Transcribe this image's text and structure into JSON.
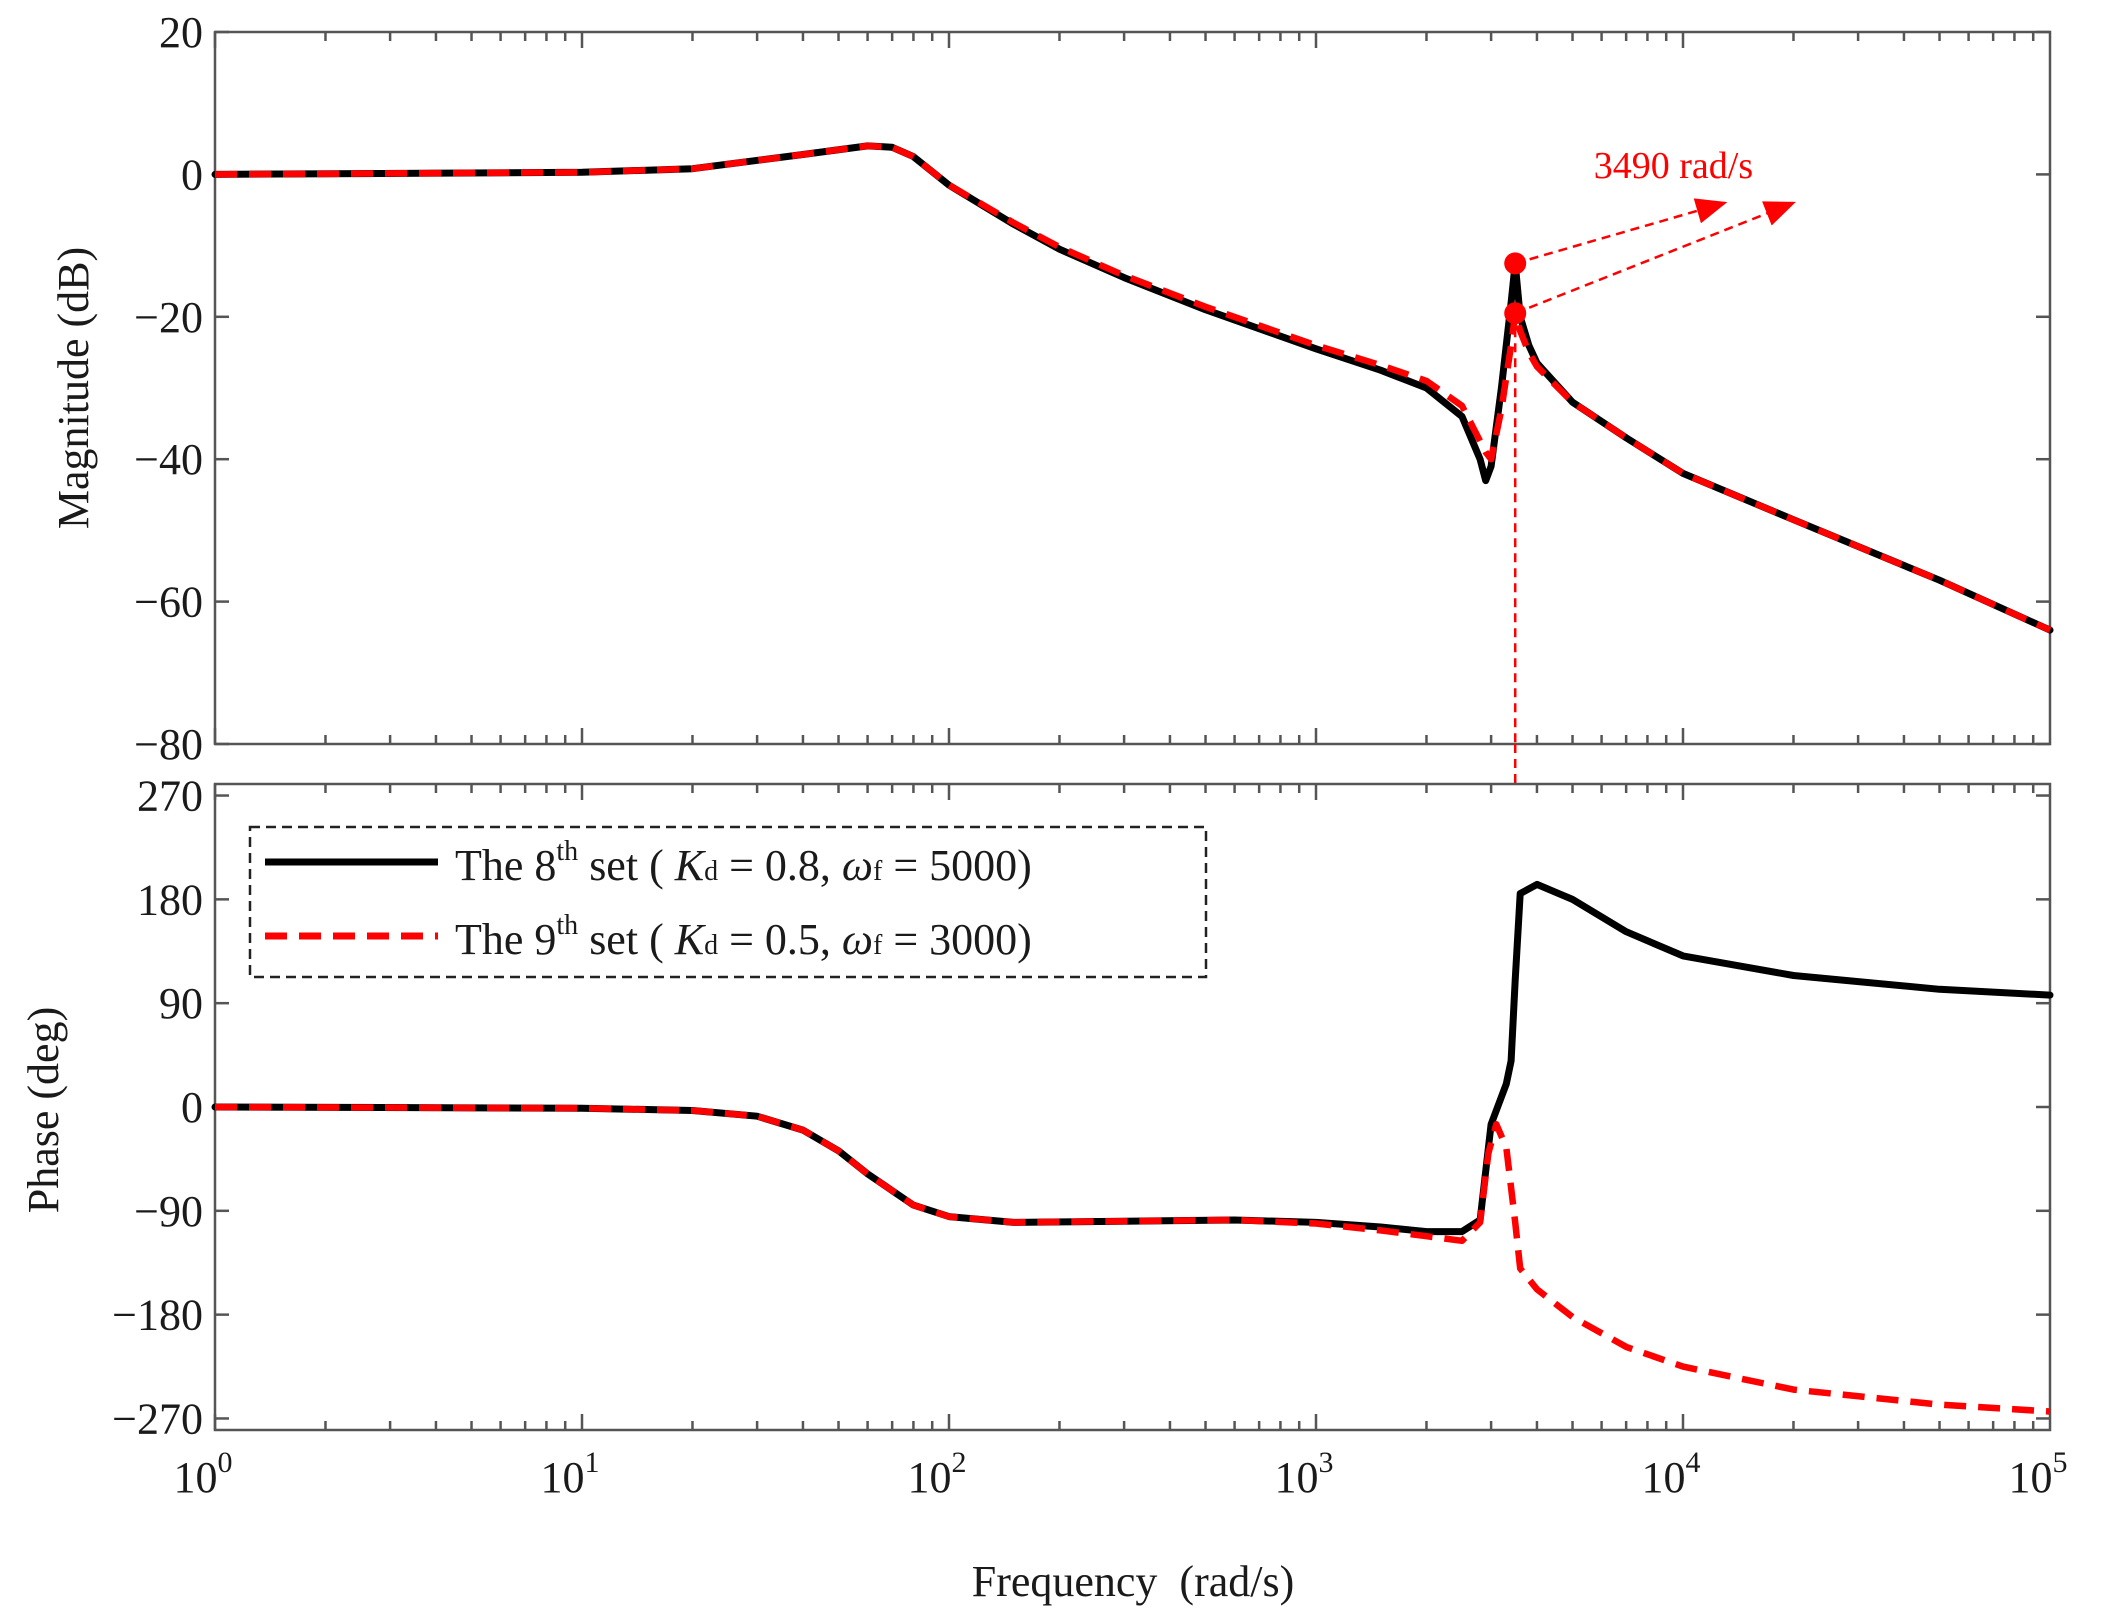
{
  "chart_data": [
    {
      "type": "line",
      "panel": "magnitude",
      "xscale": "log",
      "xlim": [
        1,
        100000
      ],
      "ylim": [
        -80,
        20
      ],
      "yticks": [
        20,
        0,
        -20,
        -40,
        -60,
        -80
      ],
      "ytick_labels": [
        "20",
        "0",
        "−20",
        "−40",
        "−60",
        "−80"
      ],
      "xlabel": "",
      "ylabel": "Magnitude (dB)",
      "grid": false,
      "series": [
        {
          "name": "The 8th set (Kd = 0.8, ωf = 5000)",
          "color": "#000000",
          "style": "solid",
          "points": [
            [
              1,
              0
            ],
            [
              10,
              0.3
            ],
            [
              20,
              0.8
            ],
            [
              40,
              2.8
            ],
            [
              60,
              4
            ],
            [
              70,
              3.8
            ],
            [
              80,
              2.5
            ],
            [
              100,
              -1.5
            ],
            [
              150,
              -7
            ],
            [
              200,
              -10.5
            ],
            [
              300,
              -14.5
            ],
            [
              500,
              -19
            ],
            [
              1000,
              -24.5
            ],
            [
              1500,
              -27.5
            ],
            [
              2000,
              -30
            ],
            [
              2500,
              -34
            ],
            [
              2800,
              -40
            ],
            [
              2900,
              -43
            ],
            [
              3000,
              -41
            ],
            [
              3200,
              -30
            ],
            [
              3400,
              -18
            ],
            [
              3490,
              -12.5
            ],
            [
              3600,
              -20
            ],
            [
              3800,
              -24
            ],
            [
              4000,
              -26.5
            ],
            [
              5000,
              -32
            ],
            [
              7000,
              -37
            ],
            [
              10000,
              -42
            ],
            [
              20000,
              -48.5
            ],
            [
              50000,
              -57
            ],
            [
              100000,
              -64
            ]
          ]
        },
        {
          "name": "The 9th set (Kd = 0.5, ωf = 3000)",
          "color": "#ff0000",
          "style": "dashed",
          "points": [
            [
              1,
              0
            ],
            [
              10,
              0.3
            ],
            [
              20,
              0.8
            ],
            [
              40,
              2.8
            ],
            [
              60,
              4
            ],
            [
              70,
              3.8
            ],
            [
              80,
              2.5
            ],
            [
              100,
              -1.5
            ],
            [
              150,
              -6.8
            ],
            [
              200,
              -10.2
            ],
            [
              300,
              -14.2
            ],
            [
              500,
              -18.6
            ],
            [
              1000,
              -24
            ],
            [
              1500,
              -26.8
            ],
            [
              2000,
              -29
            ],
            [
              2500,
              -32.5
            ],
            [
              2900,
              -39
            ],
            [
              3000,
              -40
            ],
            [
              3200,
              -33
            ],
            [
              3400,
              -24
            ],
            [
              3490,
              -19.5
            ],
            [
              3600,
              -22
            ],
            [
              3800,
              -25
            ],
            [
              4000,
              -27
            ],
            [
              5000,
              -32
            ],
            [
              7000,
              -37
            ],
            [
              10000,
              -42
            ],
            [
              20000,
              -48.5
            ],
            [
              50000,
              -57
            ],
            [
              100000,
              -64
            ]
          ]
        }
      ],
      "markers": [
        {
          "x": 3490,
          "y": -12.5,
          "color": "#ff0000"
        },
        {
          "x": 3490,
          "y": -19.5,
          "color": "#ff0000"
        }
      ],
      "annotation": {
        "text": "3490 rad/s",
        "color": "#ff0000",
        "x": 3490,
        "arrow_targets": [
          [
            13000,
            -4
          ],
          [
            20000,
            -4
          ]
        ]
      }
    },
    {
      "type": "line",
      "panel": "phase",
      "xscale": "log",
      "xlim": [
        1,
        100000
      ],
      "ylim": [
        -280,
        280
      ],
      "yticks": [
        270,
        180,
        90,
        0,
        -90,
        -180,
        -270
      ],
      "ytick_labels": [
        "270",
        "180",
        "90",
        "0",
        "−90",
        "−180",
        "−270"
      ],
      "xticks": [
        1,
        10,
        100,
        1000,
        10000,
        100000
      ],
      "xtick_labels": [
        {
          "base": "10",
          "exp": "0"
        },
        {
          "base": "10",
          "exp": "1"
        },
        {
          "base": "10",
          "exp": "2"
        },
        {
          "base": "10",
          "exp": "3"
        },
        {
          "base": "10",
          "exp": "4"
        },
        {
          "base": "10",
          "exp": "5"
        }
      ],
      "xlabel": "Frequency  (rad/s)",
      "ylabel": "Phase (deg)",
      "grid": false,
      "legend_position": "top-left",
      "series": [
        {
          "name": "The 8th set (Kd = 0.8, ωf = 5000)",
          "color": "#000000",
          "style": "solid",
          "points": [
            [
              1,
              0
            ],
            [
              10,
              -1
            ],
            [
              20,
              -3
            ],
            [
              30,
              -8
            ],
            [
              40,
              -20
            ],
            [
              50,
              -38
            ],
            [
              60,
              -58
            ],
            [
              80,
              -85
            ],
            [
              100,
              -95
            ],
            [
              150,
              -100
            ],
            [
              300,
              -99
            ],
            [
              600,
              -98
            ],
            [
              1000,
              -100
            ],
            [
              1500,
              -104
            ],
            [
              2000,
              -108
            ],
            [
              2500,
              -108
            ],
            [
              2800,
              -98
            ],
            [
              3000,
              -15
            ],
            [
              3300,
              20
            ],
            [
              3400,
              40
            ],
            [
              3490,
              110
            ],
            [
              3600,
              185
            ],
            [
              4000,
              193
            ],
            [
              5000,
              180
            ],
            [
              7000,
              152
            ],
            [
              10000,
              131
            ],
            [
              20000,
              114
            ],
            [
              50000,
              102
            ],
            [
              100000,
              97
            ]
          ]
        },
        {
          "name": "The 9th set (Kd = 0.5, ωf = 3000)",
          "color": "#ff0000",
          "style": "dashed",
          "points": [
            [
              1,
              0
            ],
            [
              10,
              -1
            ],
            [
              20,
              -3
            ],
            [
              30,
              -8
            ],
            [
              40,
              -20
            ],
            [
              50,
              -38
            ],
            [
              60,
              -58
            ],
            [
              80,
              -85
            ],
            [
              100,
              -95
            ],
            [
              150,
              -100
            ],
            [
              300,
              -99
            ],
            [
              600,
              -98
            ],
            [
              1000,
              -101
            ],
            [
              1500,
              -107
            ],
            [
              2000,
              -112
            ],
            [
              2500,
              -116
            ],
            [
              2800,
              -100
            ],
            [
              2950,
              -40
            ],
            [
              3100,
              -15
            ],
            [
              3300,
              -35
            ],
            [
              3490,
              -100
            ],
            [
              3600,
              -140
            ],
            [
              4000,
              -158
            ],
            [
              5000,
              -182
            ],
            [
              7000,
              -208
            ],
            [
              10000,
              -225
            ],
            [
              20000,
              -245
            ],
            [
              50000,
              -258
            ],
            [
              100000,
              -264
            ]
          ]
        }
      ],
      "legend": [
        {
          "prefix": "The 8",
          "sup": "th",
          "mid": " set ( ",
          "K": "K",
          "Ksub": "d",
          "kval": " = 0.8, ",
          "w": "ω",
          "wsub": "f",
          "wval": " = 5000)"
        },
        {
          "prefix": "The 9",
          "sup": "th",
          "mid": " set ( ",
          "K": "K",
          "Ksub": "d",
          "kval": " = 0.5, ",
          "w": "ω",
          "wsub": "f",
          "wval": " = 3000)"
        }
      ]
    }
  ]
}
